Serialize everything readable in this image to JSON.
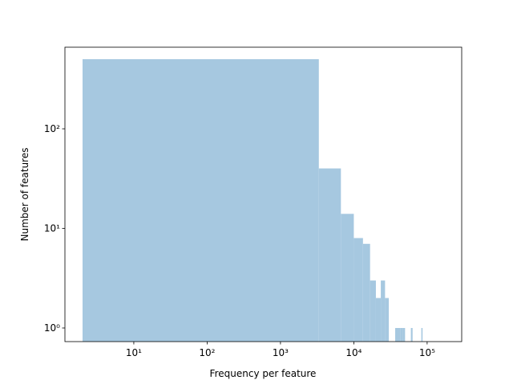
{
  "chart_data": {
    "type": "histogram",
    "xlabel": "Frequency per feature",
    "ylabel": "Number of features",
    "bins": [
      2,
      3335,
      6669,
      10002,
      13335,
      16669,
      20002,
      23335,
      26669,
      30002,
      33335,
      36669,
      40002,
      43335,
      46669,
      50002,
      53335,
      56669,
      60002,
      63335,
      66669,
      70002,
      73335,
      76669,
      80002,
      83335,
      86669,
      90002,
      93335,
      96669,
      100002
    ],
    "values": [
      500,
      40,
      14,
      8,
      7,
      3,
      2,
      3,
      2,
      0,
      0,
      1,
      1,
      1,
      1,
      0,
      0,
      0,
      1,
      0,
      0,
      0,
      0,
      0,
      0,
      1,
      0,
      0,
      0,
      0
    ],
    "color": "#a6c8e0",
    "xscale": "log",
    "yscale": "log",
    "xlim": [
      1.15,
      296000
    ],
    "ylim": [
      0.73,
      660
    ],
    "xticks": [
      {
        "value": 10,
        "label": "10¹"
      },
      {
        "value": 100,
        "label": "10²"
      },
      {
        "value": 1000,
        "label": "10³"
      },
      {
        "value": 10000,
        "label": "10⁴"
      },
      {
        "value": 100000,
        "label": "10⁵"
      }
    ],
    "yticks": [
      {
        "value": 1,
        "label": "10⁰"
      },
      {
        "value": 10,
        "label": "10¹"
      },
      {
        "value": 100,
        "label": "10²"
      }
    ]
  }
}
